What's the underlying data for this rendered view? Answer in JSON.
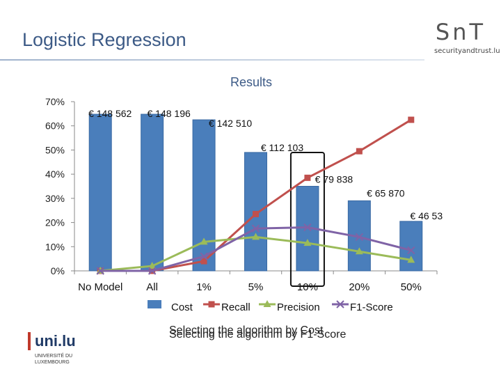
{
  "slide": {
    "title": "Logistic Regression"
  },
  "logos": {
    "snt_mark": "SnT",
    "snt_text": "securityandtrust.lu",
    "uni_mark": "uni.lu",
    "uni_text_1": "UNIVERSITÉ DU",
    "uni_text_2": "LUXEMBOURG"
  },
  "captions": [
    "Selecting the algorithm by Cost",
    "Selecting the algorithm by F1-Score"
  ],
  "colors": {
    "cost": "#4a7ebb",
    "recall": "#c0504d",
    "precision": "#9bbb59",
    "f1": "#7f63a6",
    "title": "#3c5a86"
  },
  "chart_data": {
    "type": "bar",
    "title": "Results",
    "categories": [
      "No Model",
      "All",
      "1%",
      "5%",
      "10%",
      "20%",
      "50%"
    ],
    "ylim": [
      0,
      0.7
    ],
    "y_ticks": [
      "0%",
      "10%",
      "20%",
      "30%",
      "40%",
      "50%",
      "60%",
      "70%"
    ],
    "grid": false,
    "legend": "bottom",
    "series": [
      {
        "name": "Cost",
        "kind": "bar",
        "values": [
          0.648,
          0.648,
          0.625,
          0.49,
          0.35,
          0.29,
          0.205
        ],
        "labels": [
          "€ 148 562",
          "€ 148 196",
          "€ 142 510",
          "€ 112 103",
          "€ 79 838",
          "€ 65 870",
          "€ 46 53"
        ]
      },
      {
        "name": "Recall",
        "kind": "line",
        "values": [
          0.0,
          0.0,
          0.04,
          0.235,
          0.385,
          0.495,
          0.625
        ]
      },
      {
        "name": "Precision",
        "kind": "line",
        "values": [
          0.0,
          0.02,
          0.12,
          0.14,
          0.115,
          0.08,
          0.045
        ]
      },
      {
        "name": "F1-Score",
        "kind": "line",
        "values": [
          0.0,
          0.0,
          0.06,
          0.175,
          0.18,
          0.14,
          0.085
        ]
      }
    ],
    "highlight_category": "10%"
  }
}
